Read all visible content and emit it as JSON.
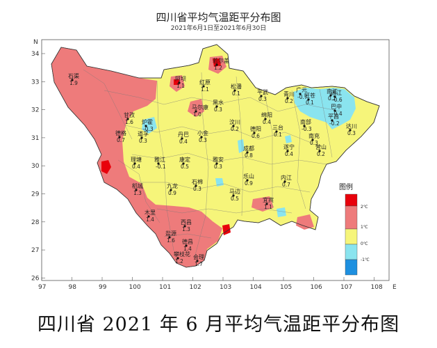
{
  "title": "四川省平均气温距平分布图",
  "subtitle": "2021年6月1日至2021年6月30日",
  "caption": "四川省 2021 年 6 月平均气温距平分布图",
  "axes": {
    "x_ticks": [
      "97",
      "98",
      "99",
      "100",
      "101",
      "102",
      "103",
      "104",
      "105",
      "106",
      "107",
      "108"
    ],
    "x_end_label": "E",
    "y_ticks": [
      "34",
      "33",
      "32",
      "31",
      "30",
      "29",
      "28",
      "27",
      "26"
    ],
    "y_top_label": "N"
  },
  "legend": {
    "title": "图例",
    "items": [
      {
        "label": "2℃",
        "color": "#e8000b"
      },
      {
        "label": "1℃",
        "color": "#f08080"
      },
      {
        "label": "0℃",
        "color": "#fafa78"
      },
      {
        "label": "-1℃",
        "color": "#80e6f0"
      },
      {
        "label": "",
        "color": "#1e90e0"
      }
    ]
  },
  "colors": {
    "red": "#e8000b",
    "pink": "#ee7b7b",
    "yellow": "#f6f57a",
    "cyan": "#8ae4ef",
    "blue": "#1e90e0"
  },
  "stations": [
    {
      "name": "石渠",
      "value": "1.9"
    },
    {
      "name": "若尔盖",
      "value": "1.2"
    },
    {
      "name": "阿坝",
      "value": "1.1"
    },
    {
      "name": "红原",
      "value": "1.1"
    },
    {
      "name": "松潘",
      "value": "0.1"
    },
    {
      "name": "甘孜",
      "value": "1.6"
    },
    {
      "name": "炉霍",
      "value": "-0.3"
    },
    {
      "name": "马尔康",
      "value": "1.0"
    },
    {
      "name": "黑水",
      "value": "0.3"
    },
    {
      "name": "平武",
      "value": "0.3"
    },
    {
      "name": "青川",
      "value": "0.2"
    },
    {
      "name": "广元",
      "value": "-0.7"
    },
    {
      "name": "旺苍",
      "value": "0.1"
    },
    {
      "name": "南江",
      "value": "0.2"
    },
    {
      "name": "通江",
      "value": "-0.6"
    },
    {
      "name": "巴中",
      "value": "-0.4"
    },
    {
      "name": "德格",
      "value": "0.7"
    },
    {
      "name": "道孚",
      "value": "0.3"
    },
    {
      "name": "丹巴",
      "value": "0.4"
    },
    {
      "name": "小金",
      "value": "0.3"
    },
    {
      "name": "汶川",
      "value": "0.2"
    },
    {
      "name": "绵阳",
      "value": "0.4"
    },
    {
      "name": "德阳",
      "value": "0.6"
    },
    {
      "name": "三台",
      "value": "0.1"
    },
    {
      "name": "南部",
      "value": "-0.3"
    },
    {
      "name": "平昌",
      "value": "-0.2"
    },
    {
      "name": "达川",
      "value": "0.3"
    },
    {
      "name": "理塘",
      "value": "0.4"
    },
    {
      "name": "雅江",
      "value": "-0.1"
    },
    {
      "name": "康定",
      "value": "0.5"
    },
    {
      "name": "雅安",
      "value": "0.3"
    },
    {
      "name": "成都",
      "value": "0.8"
    },
    {
      "name": "遂宁",
      "value": "0.4"
    },
    {
      "name": "南充",
      "value": "0.3"
    },
    {
      "name": "营山",
      "value": "0.2"
    },
    {
      "name": "稻城",
      "value": "1.3"
    },
    {
      "name": "九龙",
      "value": "0.9"
    },
    {
      "name": "石棉",
      "value": "0.3"
    },
    {
      "name": "马边",
      "value": "0.5"
    },
    {
      "name": "乐山",
      "value": "0.9"
    },
    {
      "name": "内江",
      "value": "0.7"
    },
    {
      "name": "木里",
      "value": "1.4"
    },
    {
      "name": "西昌",
      "value": "1.3"
    },
    {
      "name": "宜宾",
      "value": "1.1"
    },
    {
      "name": "盐源",
      "value": "1.6"
    },
    {
      "name": "德昌",
      "value": "1.4"
    },
    {
      "name": "攀枝花",
      "value": "1.2"
    },
    {
      "name": "会理",
      "value": "1.7"
    }
  ]
}
